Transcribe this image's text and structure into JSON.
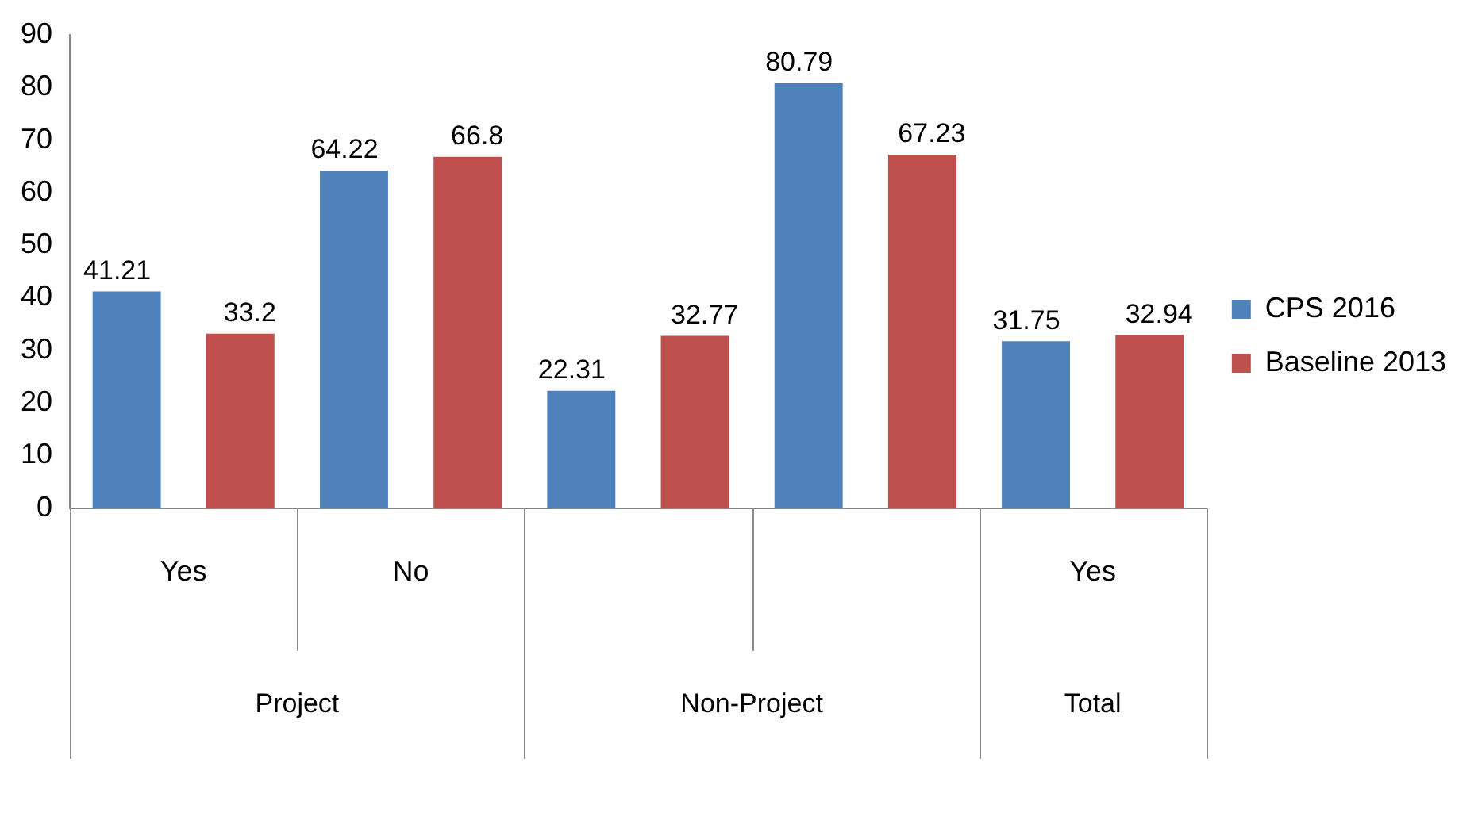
{
  "chart_data": {
    "type": "bar",
    "categories": [
      "Yes",
      "No",
      null,
      null,
      "Yes"
    ],
    "series": [
      {
        "name": "CPS 2016",
        "color": "#4f81bd",
        "values": [
          41.21,
          64.22,
          22.31,
          80.79,
          31.75
        ]
      },
      {
        "name": "Baseline 2013",
        "color": "#c0504d",
        "values": [
          33.2,
          66.8,
          32.77,
          67.23,
          32.94
        ]
      }
    ],
    "ylim": [
      0,
      90
    ],
    "yticks": [
      0,
      10,
      20,
      30,
      40,
      50,
      60,
      70,
      80,
      90
    ],
    "grid": false,
    "legend": "right",
    "data_labels": true,
    "annotations": [
      "Project",
      "Non-Project",
      "Total"
    ]
  }
}
